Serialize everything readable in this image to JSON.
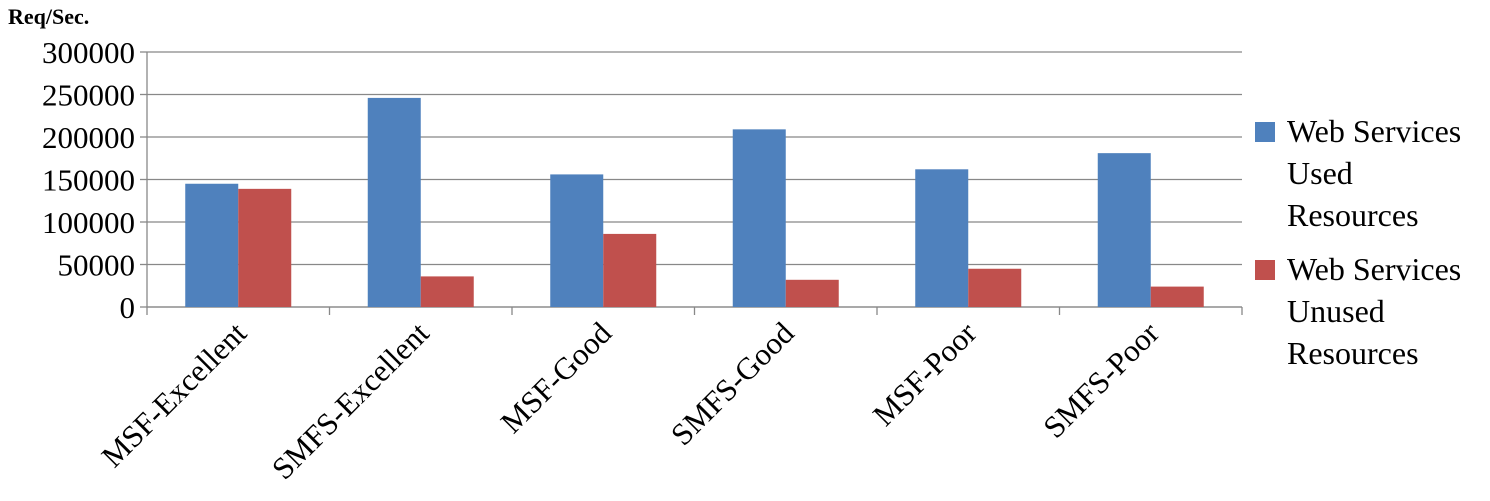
{
  "chart_data": {
    "type": "bar",
    "y_axis_label": "Req/Sec.",
    "categories": [
      "MSF-Excellent",
      "SMFS-Excellent",
      "MSF-Good",
      "SMFS-Good",
      "MSF-Poor",
      "SMFS-Poor"
    ],
    "series": [
      {
        "name": "Web Services Used Resources",
        "color": "#4f81bd",
        "values": [
          145000,
          246000,
          156000,
          209000,
          162000,
          181000
        ]
      },
      {
        "name": "Web Services Unused Resources",
        "color": "#c0504d",
        "values": [
          139000,
          36000,
          86000,
          32000,
          45000,
          24000
        ]
      }
    ],
    "ylim": [
      0,
      300000
    ],
    "yticks": [
      0,
      50000,
      100000,
      150000,
      200000,
      250000,
      300000
    ],
    "grid": true,
    "legend": "right"
  }
}
